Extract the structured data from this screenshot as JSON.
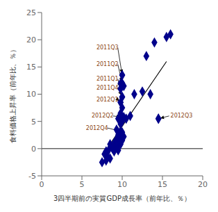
{
  "chart_data": {
    "type": "scatter",
    "xlabel": "3四半期前の実質GDP成長率（前年比、％）",
    "ylabel": "食料価格上昇率（前年比、％）",
    "x": [
      7.5,
      8.0,
      8.5,
      8.2,
      7.8,
      8.0,
      8.3,
      9.0,
      9.5,
      8.8,
      9.2,
      9.5,
      8.5,
      9.0,
      9.8,
      9.2,
      9.5,
      10.0,
      9.8,
      9.5,
      10.2,
      9.5,
      9.8,
      10.0,
      9.3,
      9.8,
      10.0,
      9.5,
      10.2,
      10.5,
      11.0,
      9.8,
      10.0,
      9.8,
      10.0,
      9.8,
      10.2,
      9.8,
      10.0,
      11.5,
      12.5,
      13.5,
      14.5,
      13.0,
      14.0,
      15.5,
      16.0
    ],
    "y": [
      -2.5,
      -2.2,
      -1.8,
      -1.5,
      -1.0,
      -0.5,
      -0.3,
      -0.5,
      -0.3,
      0.0,
      0.2,
      0.5,
      0.8,
      1.0,
      0.8,
      1.5,
      1.8,
      1.5,
      2.0,
      2.5,
      2.2,
      3.0,
      3.2,
      3.0,
      3.5,
      4.5,
      5.0,
      5.5,
      5.8,
      5.5,
      6.0,
      6.5,
      7.5,
      8.5,
      9.5,
      11.0,
      11.5,
      12.0,
      13.5,
      10.0,
      10.5,
      10.0,
      5.5,
      17.0,
      19.5,
      20.5,
      21.0
    ],
    "color": "#00008B",
    "marker": "diamond",
    "xlim": [
      0,
      20
    ],
    "ylim": [
      -5,
      25
    ],
    "xticks": [
      0,
      5,
      10,
      15,
      20
    ],
    "yticks": [
      -5,
      0,
      5,
      10,
      15,
      20,
      25
    ],
    "trendline": {
      "x": [
        8.2,
        15.5
      ],
      "y": [
        0.2,
        16.0
      ],
      "color": "#000000"
    },
    "hline": {
      "y": 0,
      "color": "#000000"
    },
    "annotations": [
      {
        "text": "2011Q3",
        "x": 10.0,
        "y": 13.5,
        "text_x": 6.8,
        "text_y": 18.5,
        "color": "#8B4513"
      },
      {
        "text": "2011Q2",
        "x": 10.0,
        "y": 12.0,
        "text_x": 6.8,
        "text_y": 15.5,
        "color": "#8B4513"
      },
      {
        "text": "2011Q1",
        "x": 9.8,
        "y": 11.0,
        "text_x": 6.8,
        "text_y": 12.8,
        "color": "#8B4513"
      },
      {
        "text": "2011Q4",
        "x": 10.0,
        "y": 9.5,
        "text_x": 6.8,
        "text_y": 11.2,
        "color": "#8B4513"
      },
      {
        "text": "2012Q1",
        "x": 9.8,
        "y": 8.5,
        "text_x": 6.8,
        "text_y": 9.0,
        "color": "#8B4513"
      },
      {
        "text": "2012Q2",
        "x": 10.0,
        "y": 5.8,
        "text_x": 6.2,
        "text_y": 6.0,
        "color": "#8B4513"
      },
      {
        "text": "2012Q4",
        "x": 9.8,
        "y": 3.2,
        "text_x": 5.5,
        "text_y": 3.8,
        "color": "#8B4513"
      },
      {
        "text": "2012Q3",
        "x": 14.5,
        "y": 5.5,
        "text_x": 16.0,
        "text_y": 6.0,
        "color": "#8B4513"
      }
    ]
  }
}
